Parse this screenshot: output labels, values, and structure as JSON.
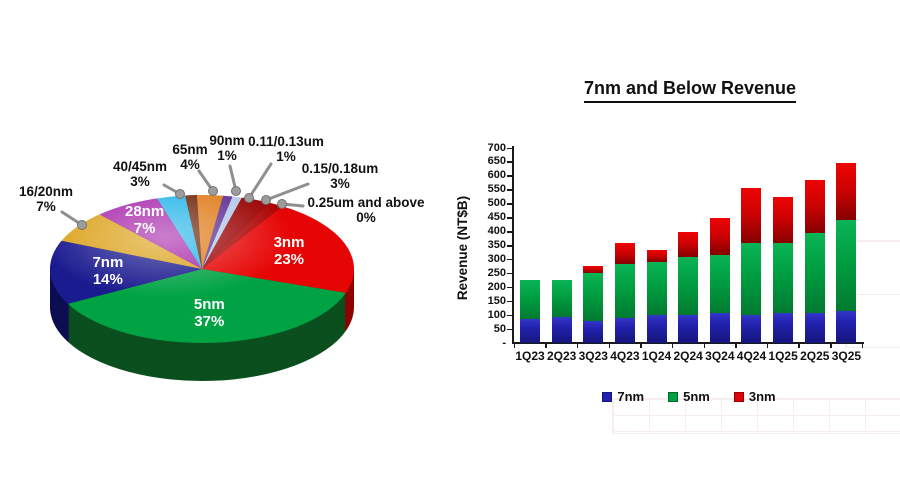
{
  "page": {
    "background": "#ffffff"
  },
  "chart_data": [
    {
      "type": "pie",
      "title": "",
      "unit": "%",
      "slices": [
        {
          "label": "3nm",
          "pct": 23,
          "color": "#e60505",
          "dark": "#8f0000",
          "label_inside": true
        },
        {
          "label": "5nm",
          "pct": 37,
          "color": "#00a344",
          "dark": "#0b4f1f",
          "label_inside": true
        },
        {
          "label": "7nm",
          "pct": 14,
          "color": "#1b1b90",
          "dark": "#0d0d52",
          "label_inside": true
        },
        {
          "label": "16/20nm",
          "pct": 7,
          "color": "#dca41f",
          "dark": "#7e5c0e",
          "label_inside": false
        },
        {
          "label": "28nm",
          "pct": 7,
          "color": "#a82aac",
          "dark": "#5d1363",
          "label_inside": true
        },
        {
          "label": "40/45nm",
          "pct": 3,
          "color": "#28b6e9",
          "dark": "#126e91",
          "label_inside": false
        },
        {
          "label": "65nm",
          "pct": 4,
          "color": "#e07c1b",
          "dark": "#6f3a05",
          "label_inside": false
        },
        {
          "label": "90nm",
          "pct": 1,
          "color": "#5f2f96",
          "dark": "#341a54",
          "label_inside": false
        },
        {
          "label": "0.11/0.13um",
          "pct": 1,
          "color": "#b3c9e8",
          "dark": "#68799c",
          "label_inside": false
        },
        {
          "label": "0.15/0.18um",
          "pct": 3,
          "color": "#9c0404",
          "dark": "#570000",
          "label_inside": false
        },
        {
          "label": "0.25um and above",
          "pct": 0,
          "color": "#c00000",
          "dark": "#600000",
          "label_inside": false
        }
      ],
      "leader_line_color": "#8f8f8f",
      "leader_dot_color": "#9c9c9c"
    },
    {
      "type": "bar",
      "stacked": true,
      "title": "7nm and Below Revenue",
      "ylabel": "Revenue (NT$B)",
      "categories": [
        "1Q23",
        "2Q23",
        "3Q23",
        "4Q23",
        "1Q24",
        "2Q24",
        "3Q24",
        "4Q24",
        "1Q25",
        "2Q25",
        "3Q25"
      ],
      "series": [
        {
          "name": "7nm",
          "color": "#2222b2",
          "values": [
            85,
            95,
            78,
            90,
            100,
            100,
            107,
            102,
            108,
            108,
            116
          ]
        },
        {
          "name": "5nm",
          "color": "#00a040",
          "values": [
            140,
            130,
            174,
            195,
            192,
            210,
            210,
            256,
            252,
            288,
            325
          ]
        },
        {
          "name": "3nm",
          "color": "#e00505",
          "values": [
            0,
            0,
            26,
            75,
            43,
            90,
            133,
            197,
            165,
            190,
            204
          ]
        }
      ],
      "totals": [
        225,
        225,
        278,
        360,
        335,
        400,
        450,
        555,
        525,
        586,
        645
      ],
      "ylim": [
        0,
        700
      ],
      "ytick_step": 50,
      "zero_tick_label": "-",
      "legend_position": "bottom",
      "grid": false
    }
  ]
}
